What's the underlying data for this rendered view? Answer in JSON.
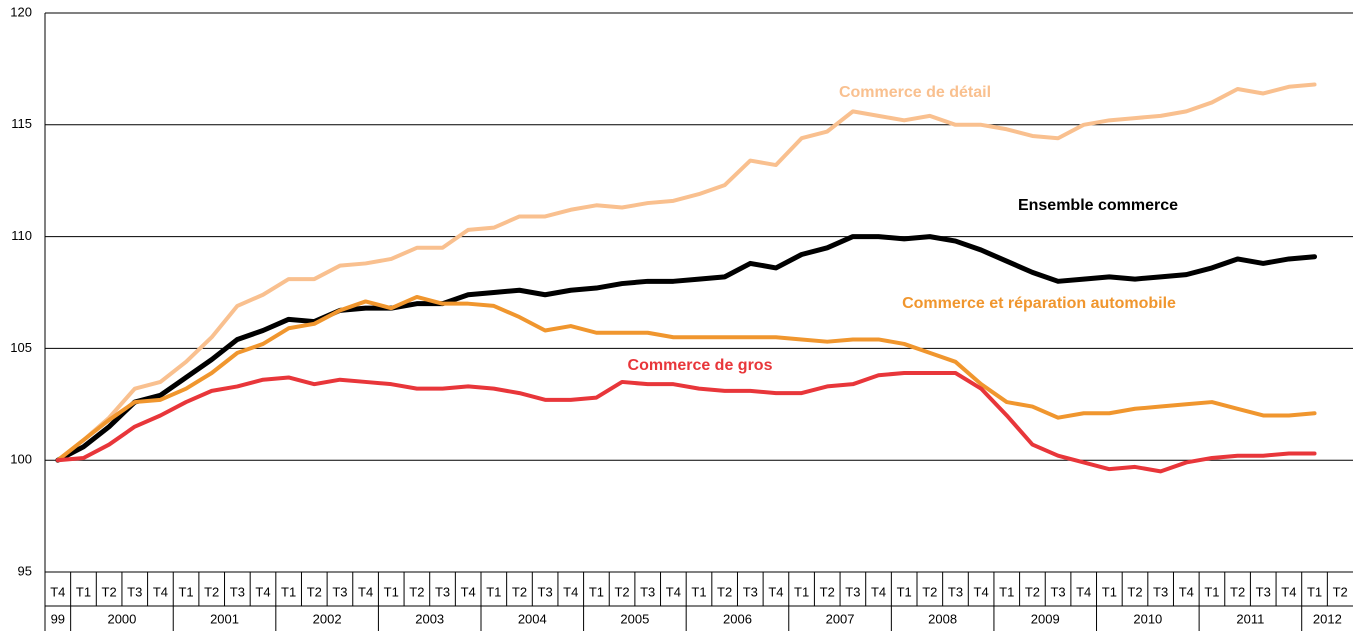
{
  "chart_data": {
    "type": "line",
    "categories": [
      "T4",
      "T1",
      "T2",
      "T3",
      "T4",
      "T1",
      "T2",
      "T3",
      "T4",
      "T1",
      "T2",
      "T3",
      "T4",
      "T1",
      "T2",
      "T3",
      "T4",
      "T1",
      "T2",
      "T3",
      "T4",
      "T1",
      "T2",
      "T3",
      "T4",
      "T1",
      "T2",
      "T3",
      "T4",
      "T1",
      "T2",
      "T3",
      "T4",
      "T1",
      "T2",
      "T3",
      "T4",
      "T1",
      "T2",
      "T3",
      "T4",
      "T1",
      "T2",
      "T3",
      "T4",
      "T1",
      "T2",
      "T3",
      "T4",
      "T1",
      "T2"
    ],
    "years": [
      "99",
      "2000",
      "2001",
      "2002",
      "2003",
      "2004",
      "2005",
      "2006",
      "2007",
      "2008",
      "2009",
      "2010",
      "2011",
      "2012"
    ],
    "series": [
      {
        "name": "Commerce de détail",
        "color": "#f9c08f",
        "values": [
          100,
          100.9,
          101.9,
          103.2,
          103.5,
          104.4,
          105.5,
          106.9,
          107.4,
          108.1,
          108.1,
          108.7,
          108.8,
          109.0,
          109.5,
          109.5,
          110.3,
          110.4,
          110.9,
          110.9,
          111.2,
          111.4,
          111.3,
          111.5,
          111.6,
          111.9,
          112.3,
          113.4,
          113.2,
          114.4,
          114.7,
          115.6,
          115.4,
          115.2,
          115.4,
          115.0,
          115.0,
          114.8,
          114.5,
          114.4,
          115.0,
          115.2,
          115.3,
          115.4,
          115.6,
          116.0,
          116.6,
          116.4,
          116.7,
          116.8,
          null
        ]
      },
      {
        "name": "Ensemble commerce",
        "color": "#000000",
        "values": [
          100,
          100.6,
          101.5,
          102.6,
          102.9,
          103.7,
          104.5,
          105.4,
          105.8,
          106.3,
          106.2,
          106.7,
          106.8,
          106.8,
          107.0,
          107.0,
          107.4,
          107.5,
          107.6,
          107.4,
          107.6,
          107.7,
          107.9,
          108.0,
          108.0,
          108.1,
          108.2,
          108.8,
          108.6,
          109.2,
          109.5,
          110.0,
          110.0,
          109.9,
          110.0,
          109.8,
          109.4,
          108.9,
          108.4,
          108.0,
          108.1,
          108.2,
          108.1,
          108.2,
          108.3,
          108.6,
          109.0,
          108.8,
          109.0,
          109.1,
          null
        ]
      },
      {
        "name": "Commerce et réparation automobile",
        "color": "#f0962e",
        "values": [
          100,
          100.9,
          101.8,
          102.6,
          102.7,
          103.2,
          103.9,
          104.8,
          105.2,
          105.9,
          106.1,
          106.7,
          107.1,
          106.8,
          107.3,
          107.0,
          107.0,
          106.9,
          106.4,
          105.8,
          106.0,
          105.7,
          105.7,
          105.7,
          105.5,
          105.5,
          105.5,
          105.5,
          105.5,
          105.4,
          105.3,
          105.4,
          105.4,
          105.2,
          104.8,
          104.4,
          103.4,
          102.6,
          102.4,
          101.9,
          102.1,
          102.1,
          102.3,
          102.4,
          102.5,
          102.6,
          102.3,
          102.0,
          102.0,
          102.1,
          null
        ]
      },
      {
        "name": "Commerce de gros",
        "color": "#e8363a",
        "values": [
          100,
          100.1,
          100.7,
          101.5,
          102.0,
          102.6,
          103.1,
          103.3,
          103.6,
          103.7,
          103.4,
          103.6,
          103.5,
          103.4,
          103.2,
          103.2,
          103.3,
          103.2,
          103.0,
          102.7,
          102.7,
          102.8,
          103.5,
          103.4,
          103.4,
          103.2,
          103.1,
          103.1,
          103.0,
          103.0,
          103.3,
          103.4,
          103.8,
          103.9,
          103.9,
          103.9,
          103.2,
          102.0,
          100.7,
          100.2,
          99.9,
          99.6,
          99.7,
          99.5,
          99.9,
          100.1,
          100.2,
          100.2,
          100.3,
          100.3,
          null
        ]
      }
    ],
    "ylim": [
      95,
      120
    ],
    "yticks": [
      95,
      100,
      105,
      110,
      115,
      120
    ],
    "grid": true
  }
}
